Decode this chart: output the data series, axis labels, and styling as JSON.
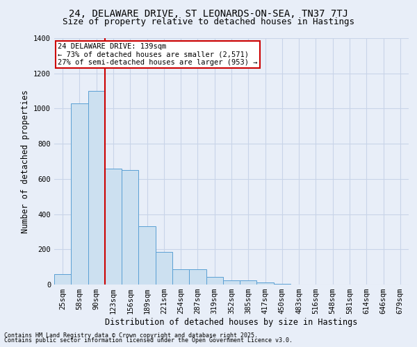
{
  "title1": "24, DELAWARE DRIVE, ST LEONARDS-ON-SEA, TN37 7TJ",
  "title2": "Size of property relative to detached houses in Hastings",
  "xlabel": "Distribution of detached houses by size in Hastings",
  "ylabel": "Number of detached properties",
  "categories": [
    "25sqm",
    "58sqm",
    "90sqm",
    "123sqm",
    "156sqm",
    "189sqm",
    "221sqm",
    "254sqm",
    "287sqm",
    "319sqm",
    "352sqm",
    "385sqm",
    "417sqm",
    "450sqm",
    "483sqm",
    "516sqm",
    "548sqm",
    "581sqm",
    "614sqm",
    "646sqm",
    "679sqm"
  ],
  "values": [
    60,
    1030,
    1100,
    660,
    650,
    330,
    185,
    85,
    85,
    45,
    25,
    25,
    10,
    5,
    0,
    0,
    0,
    0,
    0,
    0,
    0
  ],
  "bar_color": "#cce0f0",
  "bar_edge_color": "#5a9fd4",
  "background_color": "#e8eef8",
  "grid_color": "#c8d4e8",
  "annotation_text": "24 DELAWARE DRIVE: 139sqm\n← 73% of detached houses are smaller (2,571)\n27% of semi-detached houses are larger (953) →",
  "vline_position": 2.5,
  "vline_color": "#cc0000",
  "annotation_box_color": "#ffffff",
  "annotation_box_edge": "#cc0000",
  "ylim": [
    0,
    1400
  ],
  "yticks": [
    0,
    200,
    400,
    600,
    800,
    1000,
    1200,
    1400
  ],
  "footer1": "Contains HM Land Registry data © Crown copyright and database right 2025.",
  "footer2": "Contains public sector information licensed under the Open Government Licence v3.0.",
  "title_fontsize": 10,
  "subtitle_fontsize": 9,
  "tick_fontsize": 7.5,
  "label_fontsize": 8.5,
  "annotation_fontsize": 7.5,
  "footer_fontsize": 6.0
}
